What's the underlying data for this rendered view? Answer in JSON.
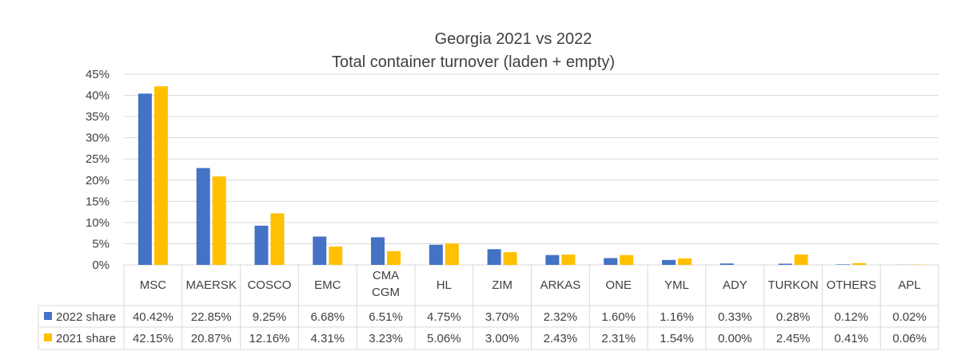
{
  "chart_data": {
    "type": "bar",
    "title": "Georgia 2021 vs 2022",
    "subtitle": "Total container turnover (laden + empty)",
    "categories": [
      "MSC",
      "MAERSK",
      "COSCO",
      "EMC",
      "CMA CGM",
      "HL",
      "ZIM",
      "ARKAS",
      "ONE",
      "YML",
      "ADY",
      "TURKON",
      "OTHERS",
      "APL"
    ],
    "category_lines": [
      [
        "MSC"
      ],
      [
        "MAERSK"
      ],
      [
        "COSCO"
      ],
      [
        "EMC"
      ],
      [
        "CMA",
        "CGM"
      ],
      [
        "HL"
      ],
      [
        "ZIM"
      ],
      [
        "ARKAS"
      ],
      [
        "ONE"
      ],
      [
        "YML"
      ],
      [
        "ADY"
      ],
      [
        "TURKON"
      ],
      [
        "OTHERS"
      ],
      [
        "APL"
      ]
    ],
    "series": [
      {
        "name": "2022 share",
        "color": "#4472C4",
        "values": [
          40.42,
          22.85,
          9.25,
          6.68,
          6.51,
          4.75,
          3.7,
          2.32,
          1.6,
          1.16,
          0.33,
          0.28,
          0.12,
          0.02
        ],
        "labels": [
          "40.42%",
          "22.85%",
          "9.25%",
          "6.68%",
          "6.51%",
          "4.75%",
          "3.70%",
          "2.32%",
          "1.60%",
          "1.16%",
          "0.33%",
          "0.28%",
          "0.12%",
          "0.02%"
        ]
      },
      {
        "name": "2021 share",
        "color": "#FFC000",
        "values": [
          42.15,
          20.87,
          12.16,
          4.31,
          3.23,
          5.06,
          3.0,
          2.43,
          2.31,
          1.54,
          0.0,
          2.45,
          0.41,
          0.06
        ],
        "labels": [
          "42.15%",
          "20.87%",
          "12.16%",
          "4.31%",
          "3.23%",
          "5.06%",
          "3.00%",
          "2.43%",
          "2.31%",
          "1.54%",
          "0.00%",
          "2.45%",
          "0.41%",
          "0.06%"
        ]
      }
    ],
    "ylim": [
      0,
      45
    ],
    "yticks": [
      "0%",
      "5%",
      "10%",
      "15%",
      "20%",
      "25%",
      "30%",
      "35%",
      "40%",
      "45%"
    ],
    "grid": true,
    "legend": "data table"
  }
}
